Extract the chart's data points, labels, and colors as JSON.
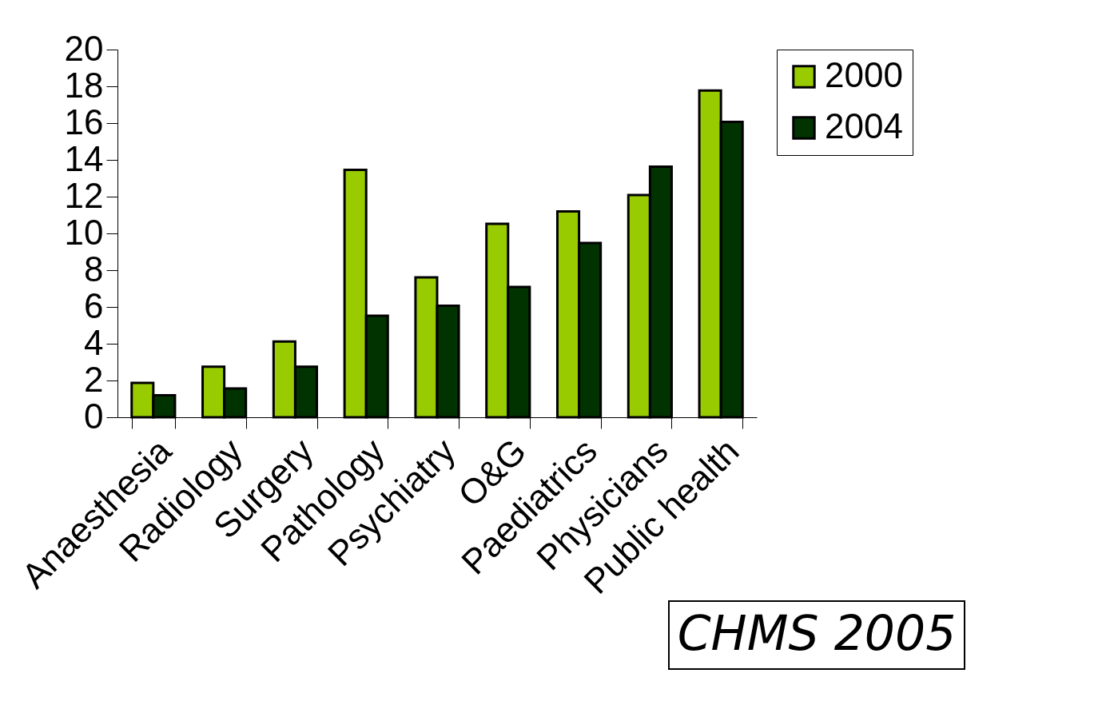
{
  "chart_data": {
    "type": "bar",
    "categories": [
      "Anaesthesia",
      "Radiology",
      "Surgery",
      "Pathology",
      "Psychiatry",
      "O&G",
      "Paediatrics",
      "Physicians",
      "Public health"
    ],
    "series": [
      {
        "name": "2000",
        "color": "#99cc00",
        "values": [
          1.87,
          2.75,
          4.12,
          13.46,
          7.61,
          10.52,
          11.2,
          12.09,
          17.77
        ]
      },
      {
        "name": "2004",
        "color": "#003300",
        "values": [
          1.2,
          1.57,
          2.75,
          5.52,
          6.07,
          7.09,
          9.48,
          13.63,
          16.07
        ]
      }
    ],
    "ylim": [
      0,
      20
    ],
    "yticks": [
      0,
      2,
      4,
      6,
      8,
      10,
      12,
      14,
      16,
      18,
      20
    ],
    "grid": false,
    "legend": "right",
    "annotations": [
      "CHMS 2005"
    ]
  }
}
